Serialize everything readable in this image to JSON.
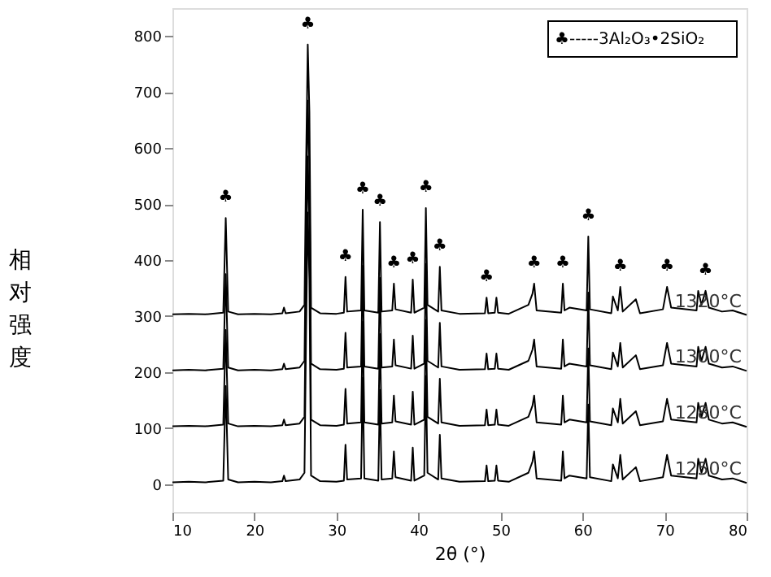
{
  "chart_data": {
    "type": "line",
    "xlabel": "2θ (°)",
    "ylabel": "相对强度",
    "xlim": [
      10,
      80
    ],
    "ylim": [
      -50,
      850
    ],
    "xticks": [
      10,
      20,
      30,
      40,
      50,
      60,
      70,
      80
    ],
    "yticks": [
      0,
      100,
      200,
      300,
      400,
      500,
      600,
      700,
      800
    ],
    "legend": false,
    "grid": false,
    "x": [
      10,
      12,
      14,
      16.2,
      16.5,
      16.8,
      18,
      20,
      22,
      23.4,
      23.6,
      23.8,
      25.5,
      26.1,
      26.3,
      26.5,
      26.7,
      26.9,
      28,
      30,
      30.9,
      31.1,
      31.3,
      33.0,
      33.2,
      33.4,
      35.1,
      35.3,
      35.5,
      36.8,
      37.0,
      37.2,
      39.1,
      39.3,
      39.5,
      40.7,
      40.9,
      41.1,
      42.4,
      42.6,
      42.8,
      45,
      48.1,
      48.3,
      48.5,
      49.3,
      49.5,
      49.7,
      51,
      53.4,
      53.9,
      54.1,
      54.4,
      57.4,
      57.6,
      57.8,
      58.4,
      60.5,
      60.7,
      60.9,
      63.5,
      63.7,
      64.3,
      64.6,
      64.9,
      66.5,
      67,
      69.8,
      70.3,
      70.8,
      73.9,
      74.1,
      74.5,
      75.0,
      75.4,
      77,
      78.3,
      80
    ],
    "series": [
      {
        "name": "1320°C",
        "color": "#000000",
        "values": [
          303,
          304,
          303,
          306,
          475,
          308,
          303,
          304,
          303,
          305,
          315,
          305,
          308,
          320,
          575,
          785,
          665,
          315,
          305,
          304,
          306,
          370,
          308,
          310,
          490,
          310,
          306,
          468,
          308,
          310,
          358,
          312,
          306,
          365,
          306,
          315,
          493,
          320,
          308,
          388,
          310,
          304,
          305,
          333,
          305,
          306,
          333,
          306,
          304,
          320,
          340,
          358,
          310,
          306,
          358,
          310,
          315,
          310,
          442,
          312,
          305,
          335,
          310,
          352,
          308,
          330,
          305,
          312,
          352,
          315,
          310,
          345,
          320,
          345,
          315,
          308,
          310,
          302
        ]
      },
      {
        "name": "1300°C",
        "color": "#000000",
        "values": [
          203,
          204,
          203,
          206,
          375,
          208,
          203,
          204,
          203,
          205,
          215,
          205,
          208,
          220,
          475,
          685,
          565,
          215,
          205,
          204,
          206,
          270,
          208,
          210,
          390,
          210,
          206,
          368,
          208,
          210,
          258,
          212,
          206,
          265,
          206,
          215,
          393,
          220,
          208,
          288,
          210,
          204,
          205,
          233,
          205,
          206,
          233,
          206,
          204,
          220,
          240,
          258,
          210,
          206,
          258,
          210,
          215,
          210,
          342,
          212,
          205,
          235,
          210,
          252,
          208,
          230,
          205,
          212,
          252,
          215,
          210,
          245,
          220,
          245,
          215,
          208,
          210,
          202
        ]
      },
      {
        "name": "1280°C",
        "color": "#000000",
        "values": [
          103,
          104,
          103,
          106,
          275,
          108,
          103,
          104,
          103,
          105,
          115,
          105,
          108,
          120,
          375,
          585,
          465,
          115,
          105,
          104,
          106,
          170,
          108,
          110,
          290,
          110,
          106,
          268,
          108,
          110,
          158,
          112,
          106,
          165,
          106,
          115,
          293,
          120,
          108,
          188,
          110,
          104,
          105,
          133,
          105,
          106,
          133,
          106,
          104,
          120,
          140,
          158,
          110,
          106,
          158,
          110,
          115,
          110,
          242,
          112,
          105,
          135,
          110,
          152,
          108,
          130,
          105,
          112,
          152,
          115,
          110,
          145,
          120,
          145,
          115,
          108,
          110,
          102
        ]
      },
      {
        "name": "1250°C",
        "color": "#000000",
        "values": [
          3,
          4,
          3,
          6,
          175,
          8,
          3,
          4,
          3,
          5,
          15,
          5,
          8,
          20,
          275,
          485,
          365,
          15,
          5,
          4,
          6,
          70,
          8,
          10,
          190,
          10,
          6,
          168,
          8,
          10,
          58,
          12,
          6,
          65,
          6,
          15,
          193,
          20,
          8,
          88,
          10,
          4,
          5,
          33,
          5,
          6,
          33,
          6,
          4,
          20,
          40,
          58,
          10,
          6,
          58,
          10,
          15,
          10,
          142,
          12,
          5,
          35,
          10,
          52,
          8,
          30,
          5,
          12,
          52,
          15,
          10,
          45,
          20,
          45,
          15,
          8,
          10,
          2
        ]
      }
    ],
    "annotations": [
      "♣-----3Al₂O₃•2SiO₂",
      {
        "text": "♣",
        "x": 16.5,
        "y": 475
      },
      {
        "text": "♣",
        "x": 26.5,
        "y": 785
      },
      {
        "text": "♣",
        "x": 31.1,
        "y": 370
      },
      {
        "text": "♣",
        "x": 33.2,
        "y": 490
      },
      {
        "text": "♣",
        "x": 35.3,
        "y": 468
      },
      {
        "text": "♣",
        "x": 37.0,
        "y": 358
      },
      {
        "text": "♣",
        "x": 39.3,
        "y": 365
      },
      {
        "text": "♣",
        "x": 40.9,
        "y": 493
      },
      {
        "text": "♣",
        "x": 42.6,
        "y": 388
      },
      {
        "text": "♣",
        "x": 48.3,
        "y": 333
      },
      {
        "text": "♣",
        "x": 54.1,
        "y": 358
      },
      {
        "text": "♣",
        "x": 57.6,
        "y": 358
      },
      {
        "text": "♣",
        "x": 60.7,
        "y": 442
      },
      {
        "text": "♣",
        "x": 64.6,
        "y": 352
      },
      {
        "text": "♣",
        "x": 70.3,
        "y": 352
      },
      {
        "text": "♣",
        "x": 75.0,
        "y": 345
      }
    ]
  }
}
